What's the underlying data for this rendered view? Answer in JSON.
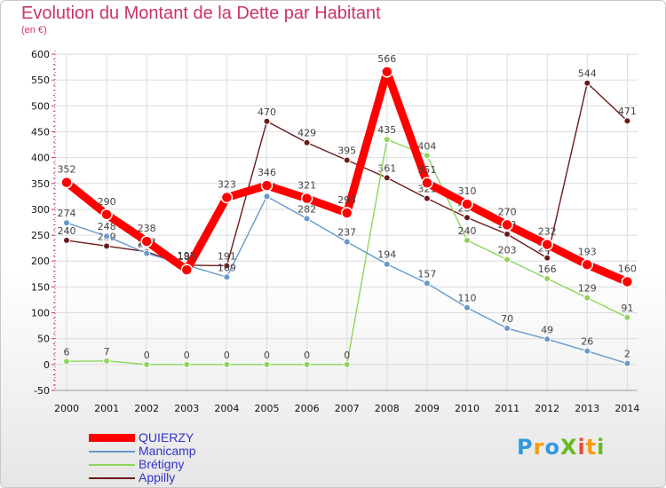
{
  "chart_data": {
    "type": "line",
    "title": "Evolution du Montant de la Dette par Habitant",
    "unit_label": "(en €)",
    "x": [
      "2000",
      "2001",
      "2002",
      "2003",
      "2004",
      "2005",
      "2006",
      "2007",
      "2008",
      "2009",
      "2010",
      "2011",
      "2012",
      "2013",
      "2014"
    ],
    "ylim": [
      -50,
      600
    ],
    "yticks": [
      -50,
      0,
      50,
      100,
      150,
      200,
      250,
      300,
      350,
      400,
      450,
      500,
      550,
      600
    ],
    "grid": true,
    "legend_position": "bottom-left",
    "series": [
      {
        "name": "Appilly",
        "color": "#6b1a1a",
        "values": [
          240,
          229,
          218,
          192,
          191,
          470,
          429,
          395,
          361,
          321,
          284,
          252,
          206,
          544,
          471
        ]
      },
      {
        "name": "Brétigny",
        "color": "#8fd45c",
        "values": [
          6,
          7,
          0,
          0,
          0,
          0,
          0,
          0,
          435,
          404,
          240,
          203,
          166,
          129,
          91
        ]
      },
      {
        "name": "Manicamp",
        "color": "#6699cc",
        "values": [
          274,
          248,
          215,
          192,
          169,
          325,
          282,
          237,
          194,
          157,
          110,
          70,
          49,
          26,
          2
        ]
      },
      {
        "name": "QUIERZY",
        "color": "#ff0000",
        "values": [
          352,
          290,
          238,
          183,
          323,
          346,
          321,
          293,
          566,
          351,
          310,
          270,
          232,
          193,
          160
        ]
      }
    ]
  },
  "legend": [
    {
      "label": "QUIERZY",
      "color": "#ff0000"
    },
    {
      "label": "Manicamp",
      "color": "#6699cc"
    },
    {
      "label": "Brétigny",
      "color": "#8fd45c"
    },
    {
      "label": "Appilly",
      "color": "#6b1a1a"
    }
  ],
  "logo": {
    "text": "ProXiti",
    "letter_colors": [
      "#3399dd",
      "#f39c12",
      "#3399dd",
      "#66bb22",
      "#e74c3c",
      "#f39c12",
      "#66bb22"
    ]
  }
}
